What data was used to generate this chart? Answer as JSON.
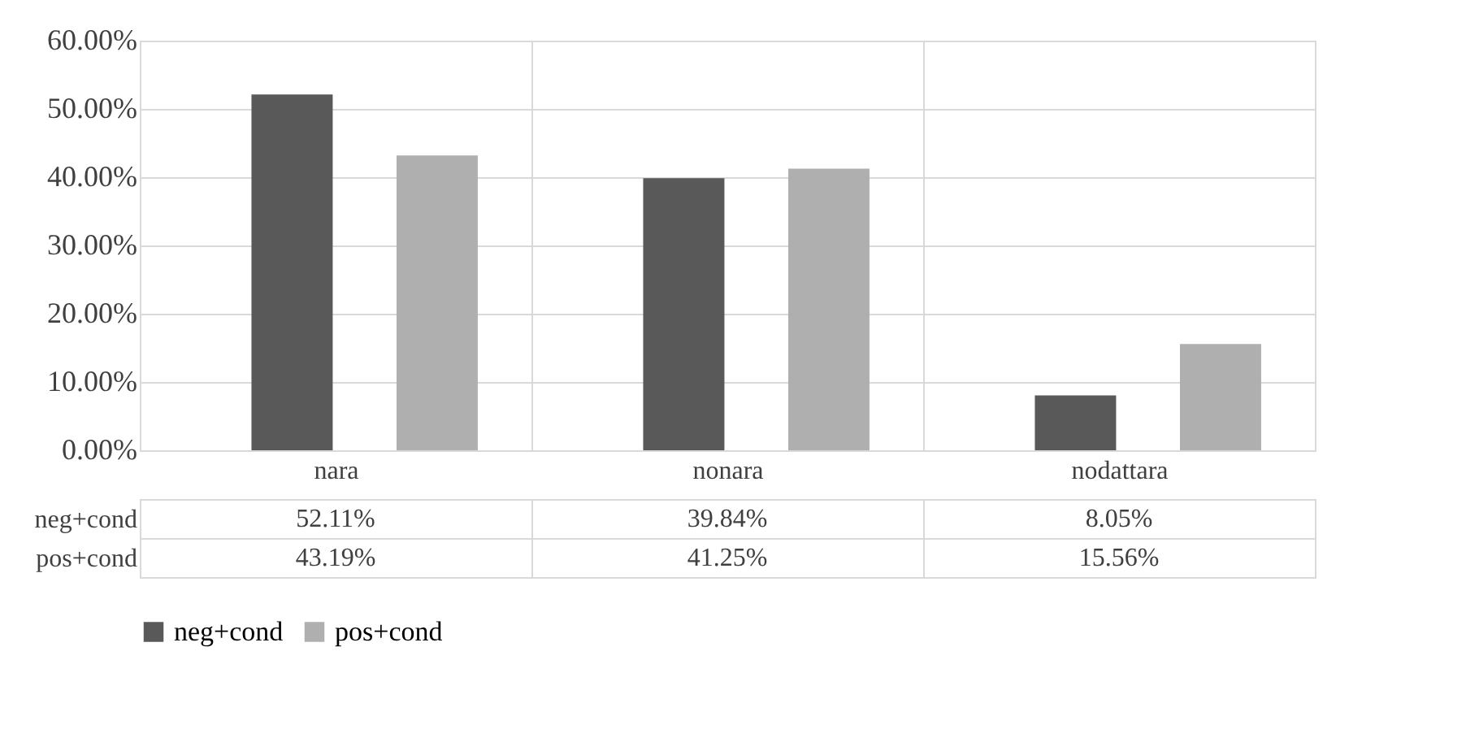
{
  "chart_data": {
    "type": "bar",
    "categories": [
      "nara",
      "nonara",
      "nodattara"
    ],
    "series": [
      {
        "name": "neg+cond",
        "color": "#595959",
        "values": [
          52.11,
          39.84,
          8.05
        ],
        "value_labels": [
          "52.11%",
          "39.84%",
          "8.05%"
        ]
      },
      {
        "name": "pos+cond",
        "color": "#afafaf",
        "values": [
          43.19,
          41.25,
          15.56
        ],
        "value_labels": [
          "43.19%",
          "41.25%",
          "15.56%"
        ]
      }
    ],
    "ylim": [
      0,
      60
    ],
    "yticks": [
      {
        "value": 0,
        "label": "0.00%"
      },
      {
        "value": 10,
        "label": "10.00%"
      },
      {
        "value": 20,
        "label": "20.00%"
      },
      {
        "value": 30,
        "label": "30.00%"
      },
      {
        "value": 40,
        "label": "40.00%"
      },
      {
        "value": 50,
        "label": "50.00%"
      },
      {
        "value": 60,
        "label": "60.00%"
      }
    ],
    "grid": "y",
    "legend": "bottom",
    "data_labels": true
  }
}
